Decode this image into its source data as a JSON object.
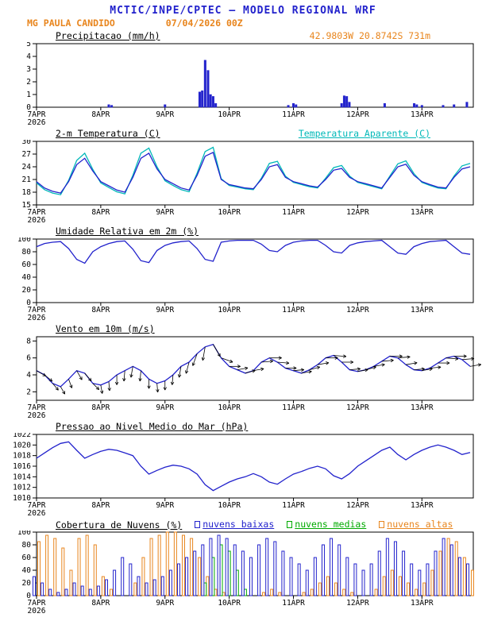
{
  "header": {
    "title": "MCTIC/INPE/CPTEC — MODELO REGIONAL WRF",
    "station": "MG PAULA CANDIDO",
    "run": "07/04/2026 00Z"
  },
  "colors": {
    "blue": "#2222cc",
    "cyan": "#00b8b8",
    "orange": "#e8851d",
    "green": "#00aa00",
    "black": "#000000"
  },
  "x_axis": {
    "tick_labels": [
      "7APR",
      "8APR",
      "9APR",
      "10APR",
      "11APR",
      "12APR",
      "13APR"
    ],
    "year_label": "2026",
    "t_max_days": 6.8
  },
  "chart_data": [
    {
      "id": "precip",
      "type": "bar",
      "title": "Precipitacao (mm/h)",
      "annotation": "42.9803W 20.8742S 731m",
      "ylim": [
        0,
        5
      ],
      "yticks": [
        0,
        1,
        2,
        3,
        4,
        5
      ],
      "bars": {
        "name": "Precipitacao",
        "color": "#2222cc",
        "points": [
          [
            1.125,
            0.2
          ],
          [
            1.17,
            0.15
          ],
          [
            2.0,
            0.2
          ],
          [
            2.54,
            1.2
          ],
          [
            2.58,
            1.3
          ],
          [
            2.625,
            3.7
          ],
          [
            2.67,
            2.9
          ],
          [
            2.71,
            1.0
          ],
          [
            2.75,
            0.85
          ],
          [
            2.79,
            0.3
          ],
          [
            3.92,
            0.15
          ],
          [
            4.0,
            0.3
          ],
          [
            4.04,
            0.2
          ],
          [
            4.75,
            0.3
          ],
          [
            4.79,
            0.9
          ],
          [
            4.83,
            0.85
          ],
          [
            4.87,
            0.4
          ],
          [
            5.42,
            0.3
          ],
          [
            5.88,
            0.3
          ],
          [
            5.92,
            0.2
          ],
          [
            6.0,
            0.15
          ],
          [
            6.33,
            0.15
          ],
          [
            6.5,
            0.2
          ],
          [
            6.7,
            0.4
          ]
        ]
      }
    },
    {
      "id": "temp",
      "type": "line",
      "title": "2-m Temperatura (C)",
      "legend_right": "Temperatura Aparente (C)",
      "ylim": [
        15,
        30
      ],
      "yticks": [
        15,
        18,
        21,
        24,
        27,
        30
      ],
      "x_step_days": 0.125,
      "series": [
        {
          "name": "Temperatura Aparente",
          "color": "#00b8b8",
          "values": [
            20.2,
            18.6,
            17.8,
            17.4,
            20.8,
            25.5,
            27.2,
            23.4,
            20.2,
            19.1,
            18.1,
            17.6,
            22.0,
            27.2,
            28.4,
            24.0,
            20.7,
            19.6,
            18.6,
            18.1,
            22.5,
            27.6,
            28.6,
            21.2,
            19.6,
            19.2,
            18.8,
            18.6,
            21.3,
            24.8,
            25.3,
            21.8,
            20.3,
            19.8,
            19.3,
            19.0,
            21.3,
            23.8,
            24.3,
            21.8,
            20.3,
            19.8,
            19.3,
            18.8,
            21.8,
            24.7,
            25.4,
            22.4,
            20.3,
            19.6,
            19.0,
            18.8,
            21.8,
            24.2,
            24.8
          ]
        },
        {
          "name": "2-m Temperatura",
          "color": "#2222cc",
          "values": [
            20.5,
            19.0,
            18.2,
            17.8,
            20.5,
            24.5,
            26.0,
            23.0,
            20.5,
            19.5,
            18.5,
            18.0,
            21.5,
            26.0,
            27.2,
            23.5,
            21.0,
            20.0,
            19.0,
            18.5,
            22.0,
            26.5,
            27.4,
            21.0,
            19.8,
            19.4,
            19.0,
            18.8,
            21.0,
            24.0,
            24.5,
            21.5,
            20.5,
            20.0,
            19.5,
            19.2,
            21.0,
            23.2,
            23.6,
            21.5,
            20.5,
            20.0,
            19.5,
            19.0,
            21.5,
            24.0,
            24.6,
            22.0,
            20.5,
            19.8,
            19.2,
            19.0,
            21.5,
            23.5,
            24.0
          ]
        }
      ]
    },
    {
      "id": "umid",
      "type": "line",
      "title": "Umidade Relativa em 2m (%)",
      "ylim": [
        0,
        100
      ],
      "yticks": [
        0,
        20,
        40,
        60,
        80,
        100
      ],
      "x_step_days": 0.125,
      "series": [
        {
          "name": "Umidade Relativa",
          "color": "#2222cc",
          "values": [
            88,
            93,
            95,
            96,
            85,
            68,
            62,
            80,
            88,
            93,
            96,
            97,
            84,
            66,
            63,
            82,
            90,
            94,
            96,
            97,
            85,
            68,
            65,
            95,
            97,
            98,
            98,
            98,
            92,
            82,
            80,
            90,
            95,
            97,
            98,
            98,
            90,
            80,
            78,
            90,
            94,
            96,
            97,
            98,
            88,
            78,
            76,
            88,
            93,
            96,
            97,
            98,
            88,
            78,
            76
          ]
        }
      ]
    },
    {
      "id": "vento",
      "type": "line-barbs",
      "title": "Vento em 10m (m/s)",
      "ylim": [
        1,
        8.5
      ],
      "yticks": [
        2,
        4,
        6,
        8
      ],
      "x_step_days": 0.125,
      "series": [
        {
          "name": "Velocidade do Vento",
          "color": "#2222cc",
          "values": [
            4.5,
            4.0,
            3.0,
            2.6,
            3.5,
            4.5,
            4.2,
            3.0,
            2.8,
            3.2,
            4.0,
            4.5,
            5.0,
            4.5,
            3.5,
            3.0,
            3.3,
            4.0,
            5.0,
            5.5,
            6.5,
            7.3,
            7.6,
            6.0,
            5.0,
            4.6,
            4.2,
            4.5,
            5.5,
            6.0,
            5.5,
            4.8,
            4.5,
            4.2,
            4.6,
            5.2,
            6.0,
            6.3,
            5.5,
            4.6,
            4.4,
            4.6,
            5.0,
            5.6,
            6.2,
            6.0,
            5.2,
            4.6,
            4.5,
            4.8,
            5.4,
            6.0,
            6.2,
            5.8,
            5.0
          ]
        }
      ],
      "barbs": {
        "name": "Direcao do Vento",
        "color": "#000000",
        "dirs_deg": [
          30,
          40,
          50,
          60,
          70,
          60,
          50,
          45,
          80,
          85,
          90,
          95,
          100,
          95,
          90,
          85,
          90,
          95,
          100,
          105,
          110,
          100,
          60,
          20,
          0,
          -10,
          -15,
          -10,
          -5,
          0,
          5,
          0,
          -5,
          -10,
          -15,
          -10,
          0,
          5,
          0,
          -5,
          -10,
          -15,
          -10,
          -5,
          0,
          -5,
          -10,
          -5,
          -10,
          -5,
          0,
          5,
          0,
          -5,
          -10
        ]
      }
    },
    {
      "id": "pressao",
      "type": "line",
      "title": "Pressao ao Nivel Medio do Mar (hPa)",
      "ylim": [
        1010,
        1022
      ],
      "yticks": [
        1010,
        1012,
        1014,
        1016,
        1018,
        1020,
        1022
      ],
      "x_step_days": 0.125,
      "series": [
        {
          "name": "Pressao ao Nivel Medio do Mar",
          "color": "#2222cc",
          "values": [
            1017.5,
            1018.5,
            1019.5,
            1020.3,
            1020.6,
            1019.0,
            1017.5,
            1018.2,
            1018.8,
            1019.2,
            1019.0,
            1018.5,
            1018.0,
            1016.0,
            1014.5,
            1015.2,
            1015.8,
            1016.2,
            1016.0,
            1015.5,
            1014.5,
            1012.5,
            1011.4,
            1012.2,
            1013.0,
            1013.6,
            1014.0,
            1014.6,
            1014.0,
            1013.0,
            1012.6,
            1013.6,
            1014.5,
            1015.0,
            1015.6,
            1016.0,
            1015.5,
            1014.2,
            1013.6,
            1014.6,
            1016.0,
            1017.0,
            1018.0,
            1019.0,
            1019.6,
            1018.2,
            1017.2,
            1018.2,
            1019.0,
            1019.6,
            1020.0,
            1019.6,
            1019.0,
            1018.2,
            1018.6
          ]
        }
      ]
    },
    {
      "id": "nuvens",
      "type": "bar-multi",
      "title": "Cobertura de Nuvens (%)",
      "ylim": [
        0,
        100
      ],
      "yticks": [
        0,
        20,
        40,
        60,
        80,
        100
      ],
      "x_step_days": 0.125,
      "legend": [
        {
          "label": "nuvens baixas",
          "color": "#2222cc"
        },
        {
          "label": "nuvens medias",
          "color": "#00aa00"
        },
        {
          "label": "nuvens altas",
          "color": "#e8851d"
        }
      ],
      "series": [
        {
          "name": "nuvens baixas",
          "color": "#2222cc",
          "values": [
            30,
            20,
            10,
            5,
            10,
            20,
            15,
            10,
            15,
            25,
            40,
            60,
            50,
            30,
            20,
            25,
            30,
            40,
            50,
            60,
            70,
            80,
            90,
            95,
            90,
            80,
            70,
            60,
            80,
            90,
            85,
            70,
            60,
            50,
            40,
            60,
            80,
            90,
            80,
            60,
            50,
            40,
            50,
            70,
            90,
            85,
            70,
            50,
            40,
            50,
            70,
            90,
            80,
            60,
            50
          ]
        },
        {
          "name": "nuvens medias",
          "color": "#00aa00",
          "values": [
            0,
            0,
            0,
            0,
            0,
            0,
            0,
            0,
            0,
            0,
            0,
            0,
            0,
            0,
            0,
            0,
            0,
            0,
            0,
            0,
            0,
            20,
            60,
            80,
            70,
            40,
            10,
            0,
            0,
            0,
            0,
            0,
            0,
            0,
            0,
            0,
            0,
            0,
            0,
            0,
            0,
            0,
            0,
            0,
            0,
            0,
            0,
            0,
            0,
            0,
            0,
            0,
            0,
            0,
            0
          ]
        },
        {
          "name": "nuvens altas",
          "color": "#e8851d",
          "values": [
            85,
            95,
            90,
            75,
            40,
            90,
            95,
            80,
            30,
            10,
            0,
            0,
            20,
            60,
            90,
            95,
            100,
            100,
            95,
            90,
            60,
            30,
            10,
            5,
            0,
            0,
            0,
            0,
            5,
            10,
            5,
            0,
            0,
            5,
            10,
            20,
            30,
            20,
            10,
            5,
            0,
            0,
            10,
            30,
            40,
            30,
            20,
            10,
            20,
            40,
            70,
            90,
            85,
            60,
            40
          ]
        }
      ]
    }
  ]
}
